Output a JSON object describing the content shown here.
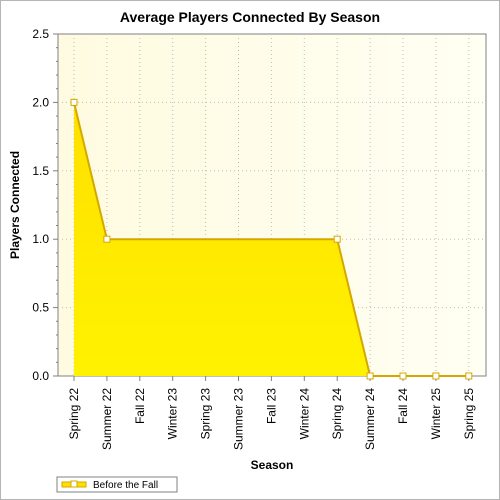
{
  "chart_data": {
    "type": "area",
    "title": "Average Players Connected By Season",
    "xlabel": "Season",
    "ylabel": "Players Connected",
    "categories": [
      "Spring 22",
      "Summer 22",
      "Fall 22",
      "Winter 23",
      "Spring 23",
      "Summer 23",
      "Fall 23",
      "Winter 24",
      "Spring 24",
      "Summer 24",
      "Fall 24",
      "Winter 25",
      "Spring 25"
    ],
    "series": [
      {
        "name": "Before the Fall",
        "values": [
          2.0,
          1.0,
          null,
          null,
          null,
          null,
          null,
          null,
          1.0,
          0.0,
          0.0,
          0.0,
          0.0
        ]
      }
    ],
    "ylim": [
      0,
      2.5
    ],
    "yticks": [
      "0.0",
      "0.5",
      "1.0",
      "1.5",
      "2.0",
      "2.5"
    ],
    "grid": true,
    "legend": "bottom-left",
    "colors": {
      "area_top": "#ffe000",
      "area_bottom": "#fff200",
      "line": "#d4a800",
      "plot_bg_left": "#fffbe0",
      "plot_bg_right": "#fffff3",
      "grid": "#bdbdbd"
    }
  }
}
